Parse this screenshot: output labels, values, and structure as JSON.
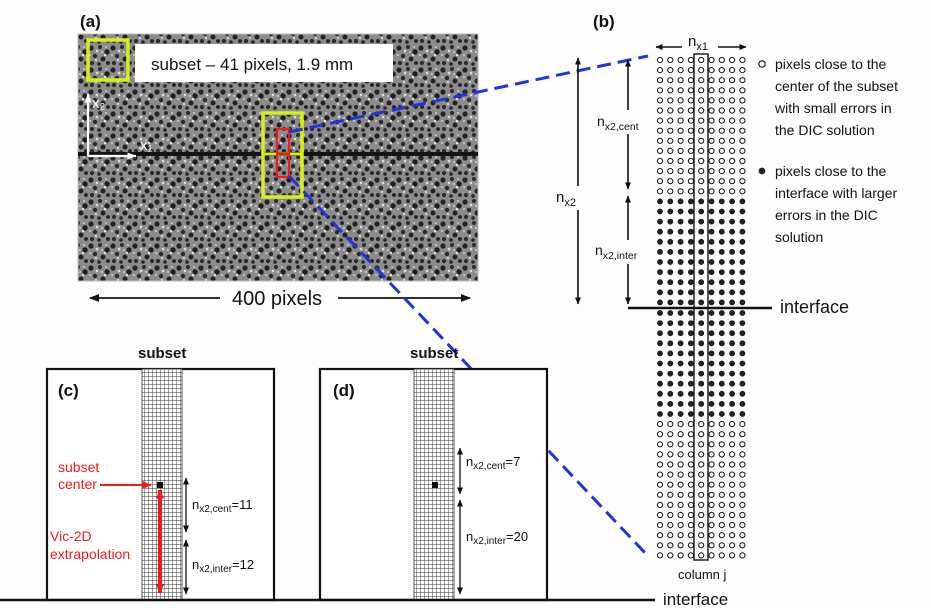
{
  "panel_a": {
    "label": "(a)",
    "subset_caption": "subset – 41 pixels, 1.9 mm",
    "axis_x2": "x₂",
    "axis_x1": "x₁",
    "scale_label": "400 pixels"
  },
  "panel_b": {
    "label": "(b)",
    "n_x1": "n",
    "n_x1_sub": "x1",
    "n_x2": "n",
    "n_x2_sub": "x2",
    "n_x2_cent": "n",
    "n_x2_cent_sub": "x2,cent",
    "n_x2_inter": "n",
    "n_x2_inter_sub": "x2,inter",
    "interface_label": "interface",
    "column_label": "column j",
    "legend": {
      "open_lines": [
        "pixels close to the",
        "center of the subset",
        "with small errors in",
        "the DIC solution"
      ],
      "filled_lines": [
        "pixels close to the",
        "interface with larger",
        "errors in the DIC",
        "solution"
      ]
    }
  },
  "panel_c": {
    "label": "(c)",
    "subset_title": "subset",
    "subset_center_lines": [
      "subset",
      "center"
    ],
    "vic_lines": [
      "Vic-2D",
      "extrapolation"
    ],
    "cent_n": "n",
    "cent_sub": "x2,cent",
    "cent_val": "=11",
    "inter_n": "n",
    "inter_sub": "x2,inter",
    "inter_val": "=12"
  },
  "panel_d": {
    "label": "(d)",
    "subset_title": "subset",
    "cent_n": "n",
    "cent_sub": "x2,cent",
    "cent_val": "=7",
    "inter_n": "n",
    "inter_sub": "x2,inter",
    "inter_val": "=20"
  },
  "bottom_interface_label": "interface",
  "colors": {
    "highlight_yellow": "#d8ee18",
    "highlight_red": "#ee1c1c",
    "dash_blue": "#2233dd",
    "annotation_red": "#ee1c1c"
  }
}
